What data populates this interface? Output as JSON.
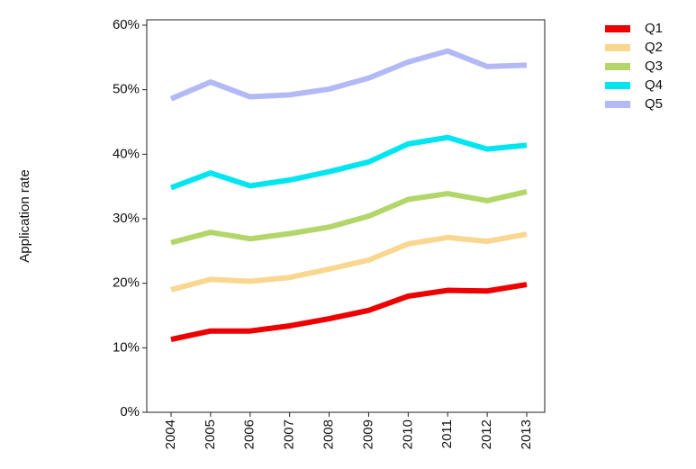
{
  "chart_data": {
    "type": "line",
    "y_label": "Application rate",
    "categories": [
      "2004",
      "2005",
      "2006",
      "2007",
      "2008",
      "2009",
      "2010",
      "2011",
      "2012",
      "2013"
    ],
    "series": [
      {
        "name": "Q1",
        "color": "#ee0000",
        "values": [
          11.3,
          12.6,
          12.6,
          13.4,
          14.5,
          15.8,
          18.0,
          18.9,
          18.8,
          19.8
        ]
      },
      {
        "name": "Q2",
        "color": "#fad790",
        "values": [
          19.0,
          20.6,
          20.3,
          20.9,
          22.2,
          23.6,
          26.1,
          27.1,
          26.5,
          27.6
        ]
      },
      {
        "name": "Q3",
        "color": "#b3d66a",
        "values": [
          26.3,
          27.9,
          26.9,
          27.7,
          28.7,
          30.4,
          33.0,
          33.9,
          32.8,
          34.2
        ]
      },
      {
        "name": "Q4",
        "color": "#00e5f0",
        "values": [
          34.8,
          37.1,
          35.1,
          36.0,
          37.3,
          38.8,
          41.6,
          42.6,
          40.8,
          41.4
        ]
      },
      {
        "name": "Q5",
        "color": "#b3b9f5",
        "values": [
          48.6,
          51.2,
          48.9,
          49.2,
          50.1,
          51.8,
          54.3,
          56.0,
          53.6,
          53.8
        ]
      }
    ],
    "ylim": [
      0,
      60
    ],
    "yticks": [
      {
        "value": 0,
        "label": "0%"
      },
      {
        "value": 10,
        "label": "10%"
      },
      {
        "value": 20,
        "label": "20%"
      },
      {
        "value": 30,
        "label": "30%"
      },
      {
        "value": 40,
        "label": "40%"
      },
      {
        "value": 50,
        "label": "50%"
      },
      {
        "value": 60,
        "label": "60%"
      }
    ],
    "legend": "top-right"
  }
}
